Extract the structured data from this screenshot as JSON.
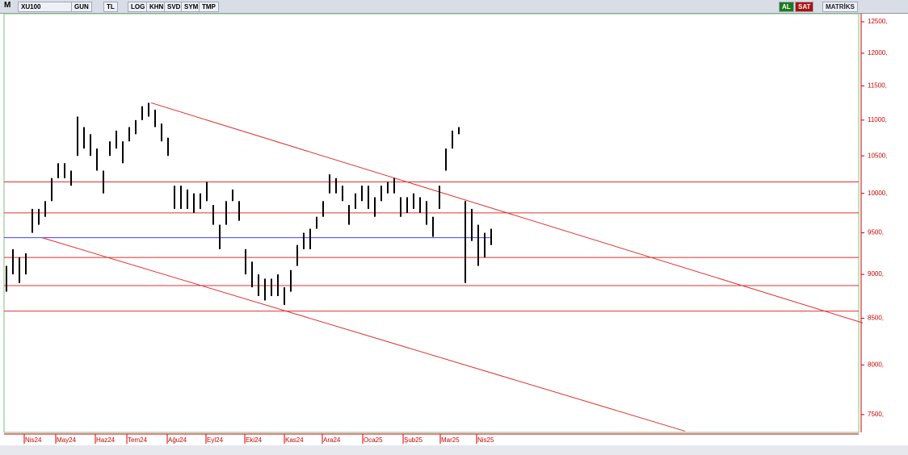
{
  "toolbar": {
    "symbol_prefix": "M",
    "symbol": "XU100",
    "buttons": [
      "GUN",
      "TL",
      "LOG",
      "KHN",
      "SVD",
      "SYM",
      "TMP"
    ],
    "buy": "AL",
    "sell": "SAT",
    "brand": "MATRİKS"
  },
  "chart_data": {
    "type": "ohlc",
    "log_scale": true,
    "months": [
      "Nis24",
      "May24",
      "Haz24",
      "Tem24",
      "Ağu24",
      "Eyl24",
      "Eki24",
      "Kas24",
      "Ara24",
      "Oca25",
      "Şub25",
      "Mar25",
      "Nis25"
    ],
    "highs": [
      9100,
      9300,
      9200,
      9250,
      9800,
      9800,
      9900,
      10200,
      10400,
      10400,
      10300,
      11050,
      10900,
      10800,
      10600,
      10300,
      10700,
      10850,
      10700,
      10900,
      11000,
      11200,
      11250,
      11150,
      10950,
      10750,
      10100,
      10100,
      10050,
      10000,
      10000,
      10150,
      9850,
      9600,
      9900,
      10050,
      9900,
      9300,
      9150,
      9000,
      8950,
      8950,
      9000,
      8850,
      9050,
      9350,
      9500,
      9550,
      9700,
      9900,
      10250,
      10200,
      10100,
      9850,
      10000,
      10100,
      10100,
      9950,
      10100,
      10150,
      10200,
      9950,
      9950,
      10000,
      9950,
      9900,
      9700,
      10100,
      10600,
      10850,
      10900,
      9900,
      9800,
      9600,
      9500,
      9550
    ],
    "lows": [
      8800,
      9000,
      8900,
      9000,
      9500,
      9600,
      9700,
      9900,
      10200,
      10200,
      10100,
      10500,
      10600,
      10500,
      10300,
      10000,
      10500,
      10600,
      10400,
      10700,
      10800,
      11000,
      11050,
      10900,
      10700,
      10500,
      9800,
      9800,
      9800,
      9750,
      9800,
      9900,
      9600,
      9300,
      9600,
      9900,
      9650,
      9000,
      8850,
      8750,
      8700,
      8750,
      8750,
      8650,
      8800,
      9100,
      9300,
      9300,
      9550,
      9700,
      10000,
      10000,
      9900,
      9600,
      9800,
      9900,
      9800,
      9700,
      9900,
      10000,
      10000,
      9700,
      9750,
      9800,
      9750,
      9600,
      9450,
      9800,
      10300,
      10600,
      10800,
      8900,
      9400,
      9100,
      9200,
      9350
    ],
    "color": "#000000",
    "ylim": [
      7328,
      12632
    ],
    "yticks": [
      {
        "value": 12500,
        "label": "12500,"
      },
      {
        "value": 12000,
        "label": "12000,"
      },
      {
        "value": 11500,
        "label": "11500,"
      },
      {
        "value": 11000,
        "label": "11000,"
      },
      {
        "value": 10500,
        "label": "10500,"
      },
      {
        "value": 10000,
        "label": "10000,"
      },
      {
        "value": 9500,
        "label": "9500,"
      },
      {
        "value": 9000,
        "label": "9000,"
      },
      {
        "value": 8500,
        "label": "8500,"
      },
      {
        "value": 8000,
        "label": "8000,"
      },
      {
        "value": 7500,
        "label": "7500,"
      }
    ],
    "levels": [
      {
        "value": 10150,
        "color": "#e03030"
      },
      {
        "value": 9750,
        "color": "#e03030"
      },
      {
        "value": 9440,
        "color": "#4040ff"
      },
      {
        "value": 9200,
        "color": "#e03030"
      },
      {
        "value": 8870,
        "color": "#e03030"
      },
      {
        "value": 8580,
        "color": "#e03030"
      }
    ],
    "trendlines": [
      {
        "start": 11250,
        "end": 8450,
        "color": "#e03030"
      },
      {
        "start": 9440,
        "end": 7340,
        "color": "#e03030"
      }
    ]
  }
}
